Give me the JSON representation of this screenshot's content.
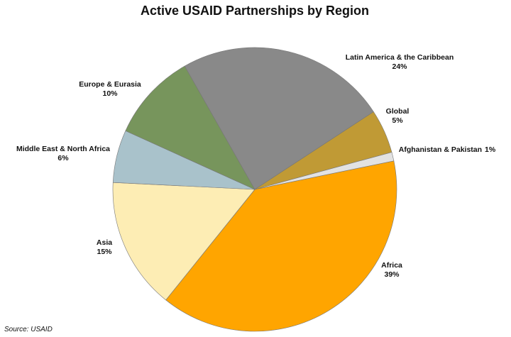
{
  "chart_data": {
    "type": "pie",
    "title": "Active USAID Partnerships by Region",
    "categories": [
      "Africa",
      "Asia",
      "Middle East & North Africa",
      "Europe & Eurasia",
      "Latin America & the Caribbean",
      "Global",
      "Afghanistan & Pakistan"
    ],
    "values": [
      39,
      15,
      6,
      10,
      24,
      5,
      1
    ],
    "value_labels": [
      "39%",
      "15%",
      "6%",
      "10%",
      "24%",
      "5%",
      "1%"
    ],
    "colors": [
      "#ffa500",
      "#fdedb4",
      "#a9c2cb",
      "#77955c",
      "#898989",
      "#c09a35",
      "#e2e2e2"
    ],
    "source": "Source: USAID"
  }
}
